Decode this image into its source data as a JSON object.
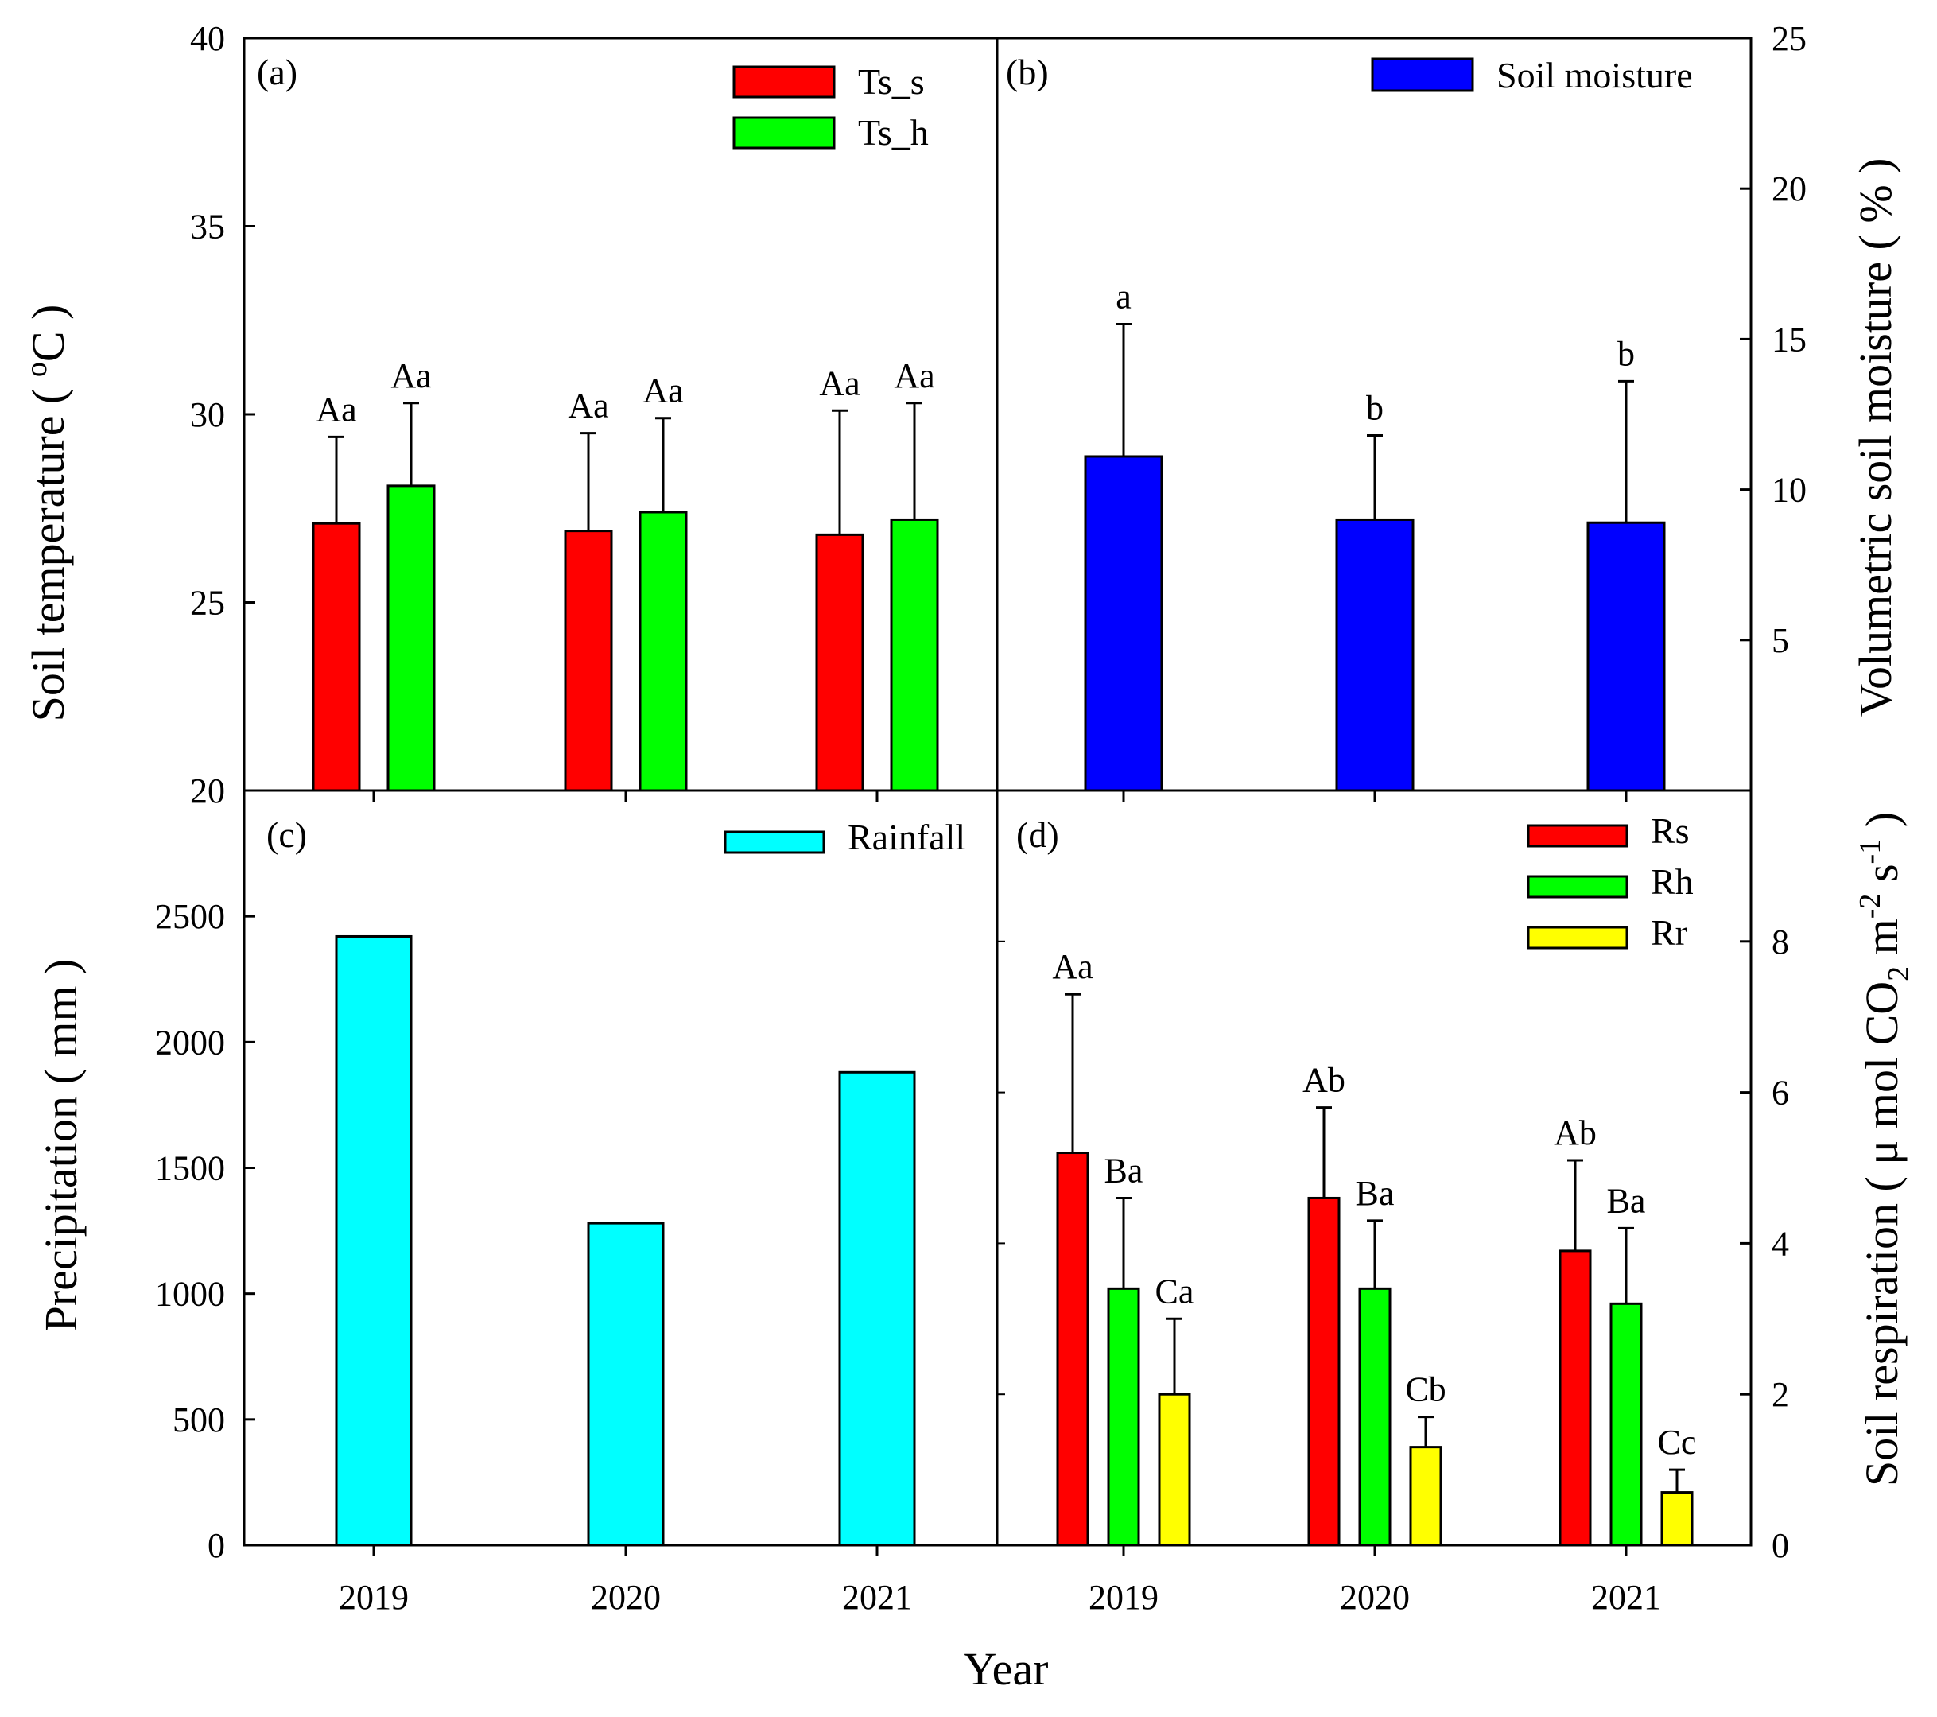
{
  "figure": {
    "x_label": "Year",
    "panel_labels": [
      "(a)",
      "(b)",
      "(c)",
      "(d)"
    ]
  },
  "axes": {
    "a_ylabel_pre": "Soil temperature ( ",
    "a_ylabel_sup": "o",
    "a_ylabel_post": "C )",
    "b_ylabel": "Volumetric soil moisture ( % )",
    "c_ylabel": "Precipitation ( mm )",
    "d_ylabel_pre": "Soil respiration ( μ mol CO",
    "d_ylabel_sub": "2",
    "d_ylabel_mid": " m",
    "d_ylabel_sup1": "-2",
    "d_ylabel_mid2": " s",
    "d_ylabel_sup2": "-1",
    "d_ylabel_post": " )"
  },
  "chart_data": [
    {
      "panel": "(a)",
      "type": "bar",
      "categories": [
        "2019",
        "2020",
        "2021"
      ],
      "ylabel": "Soil temperature ( oC )",
      "ylim": [
        20,
        40
      ],
      "yticks": [
        20,
        25,
        30,
        35,
        40
      ],
      "legend_position": "top-right",
      "series": [
        {
          "name": "Ts_s",
          "color": "#ff0000",
          "values": [
            27.1,
            26.9,
            26.8
          ],
          "errors": [
            2.3,
            2.6,
            3.3
          ],
          "labels": [
            "Aa",
            "Aa",
            "Aa"
          ]
        },
        {
          "name": "Ts_h",
          "color": "#00ff00",
          "values": [
            28.1,
            27.4,
            27.2
          ],
          "errors": [
            2.2,
            2.5,
            3.1
          ],
          "labels": [
            "Aa",
            "Aa",
            "Aa"
          ]
        }
      ]
    },
    {
      "panel": "(b)",
      "type": "bar",
      "categories": [
        "2019",
        "2020",
        "2021"
      ],
      "ylabel": "Volumetric soil moisture ( % )",
      "ylim": [
        0,
        25
      ],
      "yticks": [
        5,
        10,
        15,
        20,
        25
      ],
      "legend_position": "top-right",
      "series": [
        {
          "name": "Soil moisture",
          "color": "#0000ff",
          "values": [
            11.1,
            9.0,
            8.9
          ],
          "errors": [
            4.4,
            2.8,
            4.7
          ],
          "labels": [
            "a",
            "b",
            "b"
          ]
        }
      ]
    },
    {
      "panel": "(c)",
      "type": "bar",
      "categories": [
        "2019",
        "2020",
        "2021"
      ],
      "ylabel": "Precipitation ( mm )",
      "ylim": [
        0,
        3000
      ],
      "yticks": [
        0,
        500,
        1000,
        1500,
        2000,
        2500
      ],
      "legend_position": "top-right",
      "series": [
        {
          "name": "Rainfall",
          "color": "#00ffff",
          "values": [
            2420,
            1280,
            1880
          ]
        }
      ]
    },
    {
      "panel": "(d)",
      "type": "bar",
      "categories": [
        "2019",
        "2020",
        "2021"
      ],
      "ylabel": "Soil respiration ( μ mol CO2 m-2 s-1 )",
      "ylim": [
        0,
        10
      ],
      "yticks": [
        0,
        2,
        4,
        6,
        8
      ],
      "legend_position": "top-right",
      "series": [
        {
          "name": "Rs",
          "color": "#ff0000",
          "values": [
            5.2,
            4.6,
            3.9
          ],
          "errors": [
            2.1,
            1.2,
            1.2
          ],
          "labels": [
            "Aa",
            "Ab",
            "Ab"
          ]
        },
        {
          "name": "Rh",
          "color": "#00ff00",
          "values": [
            3.4,
            3.4,
            3.2
          ],
          "errors": [
            1.2,
            0.9,
            1.0
          ],
          "labels": [
            "Ba",
            "Ba",
            "Ba"
          ]
        },
        {
          "name": "Rr",
          "color": "#ffff00",
          "values": [
            2.0,
            1.3,
            0.7
          ],
          "errors": [
            1.0,
            0.4,
            0.3
          ],
          "labels": [
            "Ca",
            "Cb",
            "Cc"
          ]
        }
      ]
    }
  ]
}
